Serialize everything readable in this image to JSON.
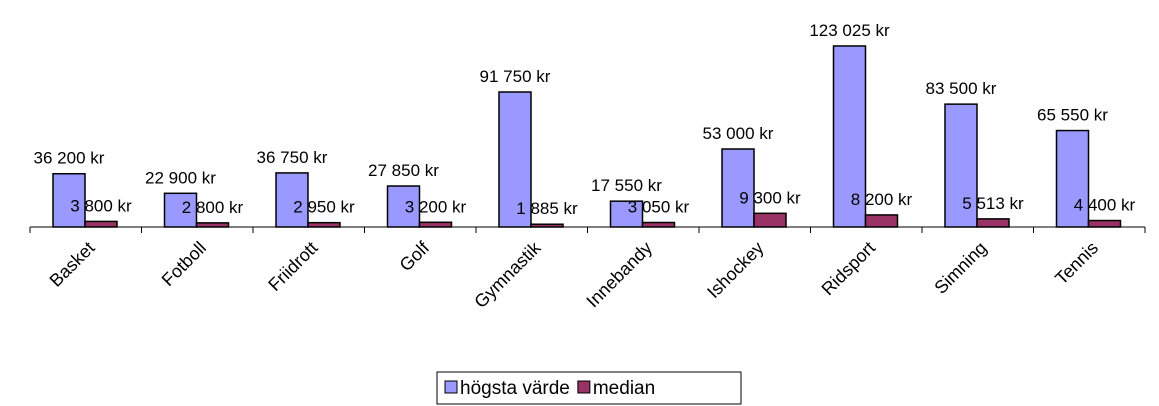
{
  "chart_data": {
    "type": "bar",
    "categories": [
      "Basket",
      "Fotboll",
      "Friidrott",
      "Golf",
      "Gymnastik",
      "Innebandy",
      "Ishockey",
      "Ridsport",
      "Simning",
      "Tennis"
    ],
    "series": [
      {
        "name": "högsta värde",
        "color": "#9999ff",
        "values": [
          36200,
          22900,
          36750,
          27850,
          91750,
          17550,
          53000,
          123025,
          83500,
          65550
        ],
        "value_labels": [
          "36 200 kr",
          "22 900 kr",
          "36 750 kr",
          "27 850 kr",
          "91 750 kr",
          "17 550 kr",
          "53 000 kr",
          "123 025 kr",
          "83 500 kr",
          "65 550 kr"
        ]
      },
      {
        "name": "median",
        "color": "#993366",
        "values": [
          3800,
          2800,
          2950,
          3200,
          1885,
          3050,
          9300,
          8200,
          5513,
          4400
        ],
        "value_labels": [
          "3 800 kr",
          "2 800 kr",
          "2 950 kr",
          "3 200 kr",
          "1 885 kr",
          "3 050 kr",
          "9 300 kr",
          "8 200 kr",
          "5 513 kr",
          "4 400 kr"
        ]
      }
    ],
    "ylim": [
      0,
      140000
    ],
    "legend": "bottom"
  }
}
